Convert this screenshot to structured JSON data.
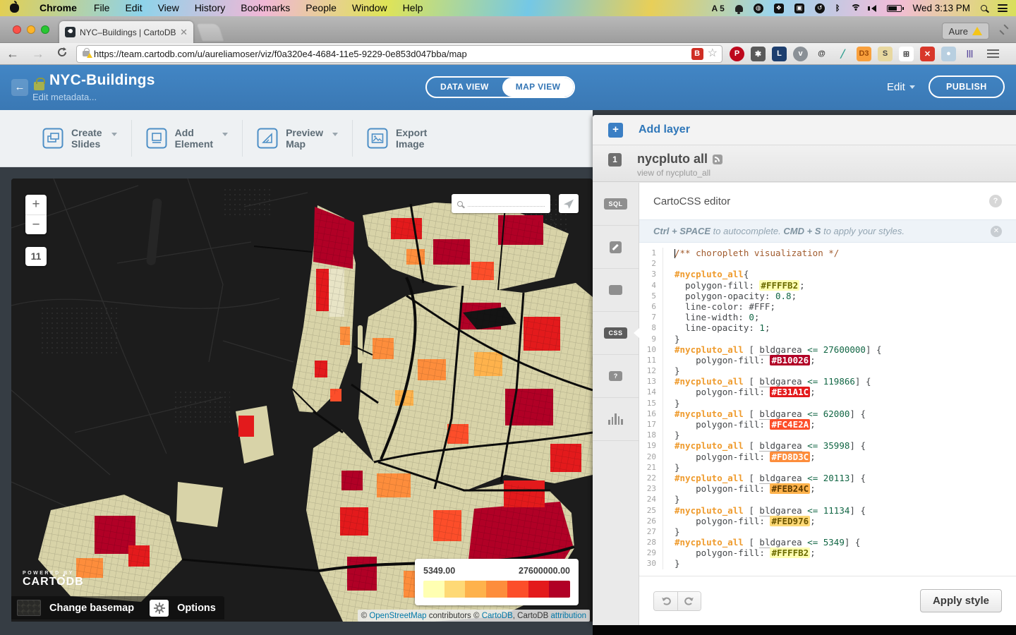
{
  "colors": {
    "header_blue": "#3E7EBF",
    "link_blue": "#2F77B9",
    "ramp": [
      "#FFFFB2",
      "#FED976",
      "#FEB24C",
      "#FD8D3C",
      "#FC4E2A",
      "#E31A1C",
      "#B10026"
    ]
  },
  "menu_bar": {
    "items": [
      "Chrome",
      "File",
      "Edit",
      "View",
      "History",
      "Bookmarks",
      "People",
      "Window",
      "Help"
    ],
    "badge_count": "5",
    "clock": "Wed 3:13 PM"
  },
  "browser": {
    "tab_title": "NYC–Buildings | CartoDB",
    "url": "https://team.cartodb.com/u/aureliamoser/viz/f0a320e4-4684-11e5-9229-0e853d047bba/map",
    "profile": "Aure",
    "urlbar_badge": "B",
    "extensions": [
      {
        "name": "pinterest-icon",
        "glyph": "P",
        "bg": "#bd081c",
        "fg": "#ffffff",
        "round": true
      },
      {
        "name": "asterisk-icon",
        "glyph": "✱",
        "bg": "#5a5a5a",
        "fg": "#ffffff"
      },
      {
        "name": "password-lock-icon",
        "glyph": "L",
        "bg": "#1d3e6e",
        "fg": "#ffffff"
      },
      {
        "name": "pocket-icon",
        "glyph": "v",
        "bg": "#8a9096",
        "fg": "#ffffff",
        "round": true
      },
      {
        "name": "at-mention-icon",
        "glyph": "@",
        "bg": "transparent",
        "fg": "#333333"
      },
      {
        "name": "eyedropper-icon",
        "glyph": "╱",
        "bg": "transparent",
        "fg": "#2f9e8f"
      },
      {
        "name": "d3-icon",
        "glyph": "D3",
        "bg": "#f9a03c",
        "fg": "#9c4a08"
      },
      {
        "name": "scraper-icon",
        "glyph": "S",
        "bg": "#e8d8a0",
        "fg": "#4a4a4a"
      },
      {
        "name": "table-grid-icon",
        "glyph": "⊞",
        "bg": "#ffffff",
        "fg": "#444444"
      },
      {
        "name": "dev-tools-icon",
        "glyph": "✕",
        "bg": "#d8372a",
        "fg": "#ffffff"
      },
      {
        "name": "screenshot-camera-icon",
        "glyph": "●",
        "bg": "#b8cfe0",
        "fg": "#ffffff"
      },
      {
        "name": "library-books-icon",
        "glyph": "|||",
        "bg": "transparent",
        "fg": "#5a4a9c"
      }
    ]
  },
  "header": {
    "title": "NYC-Buildings",
    "subtitle": "Edit metadata...",
    "view_tabs": [
      {
        "label": "DATA VIEW"
      },
      {
        "label": "MAP VIEW"
      }
    ],
    "edit_label": "Edit",
    "publish_label": "PUBLISH"
  },
  "toolbar": {
    "items": [
      {
        "line1": "Create",
        "line2": "Slides"
      },
      {
        "line1": "Add",
        "line2": "Element"
      },
      {
        "line1": "Preview",
        "line2": "Map"
      },
      {
        "line1": "Export",
        "line2": "Image"
      }
    ]
  },
  "map": {
    "zoom_in": "+",
    "zoom_out": "−",
    "zoom_level": "11",
    "legend": {
      "min": "5349.00",
      "max": "27600000.00",
      "colors": [
        "#FFFFB2",
        "#FED976",
        "#FEB24C",
        "#FD8D3C",
        "#FC4E2A",
        "#E31A1C",
        "#B10026"
      ]
    },
    "powered_by_line1": "POWERED BY",
    "powered_by_line2": "CARTODB",
    "change_basemap": "Change basemap",
    "options": "Options",
    "attribution": {
      "pre": "© ",
      "link1": "OpenStreetMap",
      "mid1": " contributors © ",
      "link2": "CartoDB",
      "mid2": ", CartoDB ",
      "link3": "attribution"
    }
  },
  "panel": {
    "add_layer": "Add layer",
    "layer": {
      "number": "1",
      "name": "nycpluto all",
      "subtitle": "view of nycpluto_all"
    },
    "rail": [
      {
        "label": "SQL"
      },
      {
        "label": "CSS"
      }
    ],
    "editor": {
      "title": "CartoCSS editor",
      "hint": {
        "b1": "Ctrl + SPACE",
        "t1": " to autocomplete. ",
        "b2": "CMD + S",
        "t2": " to apply your styles."
      },
      "apply_label": "Apply style",
      "lines": [
        {
          "n": 1,
          "cursor": true,
          "toks": [
            {
              "s": "cm",
              "t": "/** choropleth visualization */"
            }
          ]
        },
        {
          "n": 2,
          "toks": []
        },
        {
          "n": 3,
          "toks": [
            {
              "s": "sel",
              "t": "#nycpluto_all"
            },
            {
              "s": "pln",
              "t": "{"
            }
          ]
        },
        {
          "n": 4,
          "toks": [
            {
              "s": "pln",
              "t": "  polygon-fill: "
            },
            {
              "s": "chip",
              "t": "#FFFFB2",
              "bg": "#FFFFB2",
              "fg": "#6b6b00"
            },
            {
              "s": "pln",
              "t": ";"
            }
          ]
        },
        {
          "n": 5,
          "toks": [
            {
              "s": "pln",
              "t": "  polygon-opacity: "
            },
            {
              "s": "num",
              "t": "0.8"
            },
            {
              "s": "pln",
              "t": ";"
            }
          ]
        },
        {
          "n": 6,
          "toks": [
            {
              "s": "pln",
              "t": "  line-color: #FFF;"
            }
          ]
        },
        {
          "n": 7,
          "toks": [
            {
              "s": "pln",
              "t": "  line-width: "
            },
            {
              "s": "num",
              "t": "0"
            },
            {
              "s": "pln",
              "t": ";"
            }
          ]
        },
        {
          "n": 8,
          "toks": [
            {
              "s": "pln",
              "t": "  line-opacity: "
            },
            {
              "s": "num",
              "t": "1"
            },
            {
              "s": "pln",
              "t": ";"
            }
          ]
        },
        {
          "n": 9,
          "toks": [
            {
              "s": "pln",
              "t": "}"
            }
          ]
        },
        {
          "n": 10,
          "toks": [
            {
              "s": "sel",
              "t": "#nycpluto_all"
            },
            {
              "s": "pln",
              "t": " [ "
            },
            {
              "s": "attr",
              "t": "bldgarea"
            },
            {
              "s": "pln",
              "t": " "
            },
            {
              "s": "num",
              "t": "<= 27600000"
            },
            {
              "s": "pln",
              "t": "] {"
            }
          ]
        },
        {
          "n": 11,
          "toks": [
            {
              "s": "pln",
              "t": "    polygon-fill: "
            },
            {
              "s": "chip",
              "t": "#B10026",
              "bg": "#B10026",
              "fg": "#ffffff"
            },
            {
              "s": "pln",
              "t": ";"
            }
          ]
        },
        {
          "n": 12,
          "toks": [
            {
              "s": "pln",
              "t": "}"
            }
          ]
        },
        {
          "n": 13,
          "toks": [
            {
              "s": "sel",
              "t": "#nycpluto_all"
            },
            {
              "s": "pln",
              "t": " [ "
            },
            {
              "s": "attr",
              "t": "bldgarea"
            },
            {
              "s": "pln",
              "t": " "
            },
            {
              "s": "num",
              "t": "<= 119866"
            },
            {
              "s": "pln",
              "t": "] {"
            }
          ]
        },
        {
          "n": 14,
          "toks": [
            {
              "s": "pln",
              "t": "    polygon-fill: "
            },
            {
              "s": "chip",
              "t": "#E31A1C",
              "bg": "#E31A1C",
              "fg": "#ffffff"
            },
            {
              "s": "pln",
              "t": ";"
            }
          ]
        },
        {
          "n": 15,
          "toks": [
            {
              "s": "pln",
              "t": "}"
            }
          ]
        },
        {
          "n": 16,
          "toks": [
            {
              "s": "sel",
              "t": "#nycpluto_all"
            },
            {
              "s": "pln",
              "t": " [ "
            },
            {
              "s": "attr",
              "t": "bldgarea"
            },
            {
              "s": "pln",
              "t": " "
            },
            {
              "s": "num",
              "t": "<= 62000"
            },
            {
              "s": "pln",
              "t": "] {"
            }
          ]
        },
        {
          "n": 17,
          "toks": [
            {
              "s": "pln",
              "t": "    polygon-fill: "
            },
            {
              "s": "chip",
              "t": "#FC4E2A",
              "bg": "#FC4E2A",
              "fg": "#ffffff"
            },
            {
              "s": "pln",
              "t": ";"
            }
          ]
        },
        {
          "n": 18,
          "toks": [
            {
              "s": "pln",
              "t": "}"
            }
          ]
        },
        {
          "n": 19,
          "toks": [
            {
              "s": "sel",
              "t": "#nycpluto_all"
            },
            {
              "s": "pln",
              "t": " [ "
            },
            {
              "s": "attr",
              "t": "bldgarea"
            },
            {
              "s": "pln",
              "t": " "
            },
            {
              "s": "num",
              "t": "<= 35998"
            },
            {
              "s": "pln",
              "t": "] {"
            }
          ]
        },
        {
          "n": 20,
          "toks": [
            {
              "s": "pln",
              "t": "    polygon-fill: "
            },
            {
              "s": "chip",
              "t": "#FD8D3C",
              "bg": "#FD8D3C",
              "fg": "#ffffff"
            },
            {
              "s": "pln",
              "t": ";"
            }
          ]
        },
        {
          "n": 21,
          "toks": [
            {
              "s": "pln",
              "t": "}"
            }
          ]
        },
        {
          "n": 22,
          "toks": [
            {
              "s": "sel",
              "t": "#nycpluto_all"
            },
            {
              "s": "pln",
              "t": " [ "
            },
            {
              "s": "attr",
              "t": "bldgarea"
            },
            {
              "s": "pln",
              "t": " "
            },
            {
              "s": "num",
              "t": "<= 20113"
            },
            {
              "s": "pln",
              "t": "] {"
            }
          ]
        },
        {
          "n": 23,
          "toks": [
            {
              "s": "pln",
              "t": "    polygon-fill: "
            },
            {
              "s": "chip",
              "t": "#FEB24C",
              "bg": "#FEB24C",
              "fg": "#5b3a00"
            },
            {
              "s": "pln",
              "t": ";"
            }
          ]
        },
        {
          "n": 24,
          "toks": [
            {
              "s": "pln",
              "t": "}"
            }
          ]
        },
        {
          "n": 25,
          "toks": [
            {
              "s": "sel",
              "t": "#nycpluto_all"
            },
            {
              "s": "pln",
              "t": " [ "
            },
            {
              "s": "attr",
              "t": "bldgarea"
            },
            {
              "s": "pln",
              "t": " "
            },
            {
              "s": "num",
              "t": "<= 11134"
            },
            {
              "s": "pln",
              "t": "] {"
            }
          ]
        },
        {
          "n": 26,
          "toks": [
            {
              "s": "pln",
              "t": "    polygon-fill: "
            },
            {
              "s": "chip",
              "t": "#FED976",
              "bg": "#FED976",
              "fg": "#6b5500"
            },
            {
              "s": "pln",
              "t": ";"
            }
          ]
        },
        {
          "n": 27,
          "toks": [
            {
              "s": "pln",
              "t": "}"
            }
          ]
        },
        {
          "n": 28,
          "toks": [
            {
              "s": "sel",
              "t": "#nycpluto_all"
            },
            {
              "s": "pln",
              "t": " [ "
            },
            {
              "s": "attr",
              "t": "bldgarea"
            },
            {
              "s": "pln",
              "t": " "
            },
            {
              "s": "num",
              "t": "<= 5349"
            },
            {
              "s": "pln",
              "t": "] {"
            }
          ]
        },
        {
          "n": 29,
          "toks": [
            {
              "s": "pln",
              "t": "    polygon-fill: "
            },
            {
              "s": "chip",
              "t": "#FFFFB2",
              "bg": "#FFFFB2",
              "fg": "#6b6b00"
            },
            {
              "s": "pln",
              "t": ";"
            }
          ]
        },
        {
          "n": 30,
          "toks": [
            {
              "s": "pln",
              "t": "}"
            }
          ]
        }
      ]
    }
  }
}
